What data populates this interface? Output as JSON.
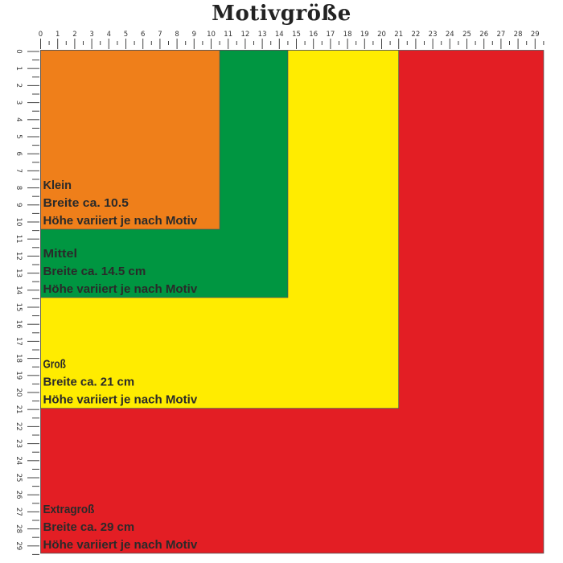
{
  "title": "Motivgröße",
  "ruler": {
    "unit_max": 29,
    "top_labels": [
      "0",
      "1",
      "2",
      "3",
      "4",
      "5",
      "6",
      "7",
      "8",
      "9",
      "10",
      "11",
      "12",
      "13",
      "14",
      "15",
      "16",
      "17",
      "18",
      "19",
      "20",
      "21",
      "22",
      "23",
      "24",
      "25",
      "26",
      "27",
      "28",
      "29"
    ],
    "left_labels": [
      "0",
      "1",
      "2",
      "3",
      "4",
      "5",
      "6",
      "7",
      "8",
      "9",
      "10",
      "11",
      "12",
      "13",
      "14",
      "15",
      "16",
      "17",
      "18",
      "19",
      "20",
      "21",
      "22",
      "23",
      "24",
      "25",
      "26",
      "27",
      "28",
      "29"
    ]
  },
  "sizes": [
    {
      "name": "Extragroß",
      "width_cm": 29.5,
      "height_cm": 29.5,
      "color": "#e31e24",
      "lines": [
        "Extragroß",
        "Breite ca. 29 cm",
        "Höhe variiert je nach Motiv"
      ]
    },
    {
      "name": "Groß",
      "width_cm": 21,
      "height_cm": 21,
      "color": "#ffec00",
      "lines": [
        "Groß",
        "Breite ca. 21 cm",
        "Höhe variiert je nach Motiv"
      ]
    },
    {
      "name": "Mittel",
      "width_cm": 14.5,
      "height_cm": 14.5,
      "color": "#009641",
      "lines": [
        "Mittel",
        "Breite ca. 14.5 cm",
        "Höhe variiert je nach Motiv"
      ]
    },
    {
      "name": "Klein",
      "width_cm": 10.5,
      "height_cm": 10.5,
      "color": "#ef7f1a",
      "lines": [
        "Klein",
        "Breite ca. 10.5",
        "Höhe variiert je nach Motiv"
      ]
    }
  ]
}
